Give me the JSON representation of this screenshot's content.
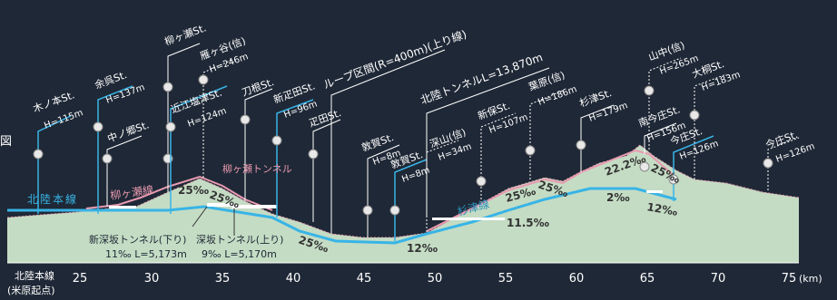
{
  "side_label": "図",
  "line_names": {
    "hokuriku_main": "北陸本線",
    "yanagase": "柳ヶ瀬線",
    "sugitsu": "杉津線"
  },
  "tunnels": {
    "yanagase": "柳ヶ瀬トンネル",
    "hokuriku": "北陸トンネルL=13,870m",
    "loop": "ループ区間(R=400m)(上り線)",
    "shin_fukasaka": [
      "新深坂トンネル(下り)",
      "11‰ L=5,173m"
    ],
    "fukasaka": [
      "深坂トンネル(上り)",
      "9‰ L=5,170m"
    ]
  },
  "axis": {
    "origin_label": [
      "北陸本線",
      "(米原起点)"
    ],
    "unit": "(km)",
    "ticks": [
      "25",
      "30",
      "35",
      "40",
      "45",
      "50",
      "55",
      "60",
      "65",
      "70",
      "75"
    ]
  },
  "stations": [
    {
      "name": "木ノ本St.",
      "elev": "H=115m"
    },
    {
      "name": "余呉St.",
      "elev": "H=137m"
    },
    {
      "name": "中ノ郷St.",
      "elev": ""
    },
    {
      "name": "柳ヶ瀬St.",
      "elev": ""
    },
    {
      "name": "雁ヶ谷(信)",
      "elev": "H=246m"
    },
    {
      "name": "近江塩津St.",
      "elev": "H=124m"
    },
    {
      "name": "刀根St.",
      "elev": ""
    },
    {
      "name": "新疋田St.",
      "elev": "H=96m"
    },
    {
      "name": "疋田St.",
      "elev": ""
    },
    {
      "name": "敦賀St.",
      "elev": "H=8m"
    },
    {
      "name": "敦賀St.",
      "elev": "H=8m"
    },
    {
      "name": "深山(信)",
      "elev": "H=34m"
    },
    {
      "name": "新保St.",
      "elev": "H=107m"
    },
    {
      "name": "葉原(信)",
      "elev": "H=186m"
    },
    {
      "name": "杉津St.",
      "elev": "H=179m"
    },
    {
      "name": "山中(信)",
      "elev": "H=265m"
    },
    {
      "name": "南今庄St.",
      "elev": "H=156m"
    },
    {
      "name": "今庄St.",
      "elev": "H=126m"
    },
    {
      "name": "大桐St.",
      "elev": "H=183m"
    },
    {
      "name": "今庄St.",
      "elev": "H=126m"
    }
  ],
  "gradients": [
    "25‰",
    "25‰",
    "25‰",
    "12‰",
    "11.5‰",
    "25‰",
    "25‰",
    "22.2‰",
    "25‰",
    "2‰",
    "12‰"
  ],
  "colors": {
    "background": "#1f2836",
    "ground": "#c4dcc4",
    "blue_line": "#38b4e6",
    "pink_line": "#e89ab0",
    "text": "#ffffff"
  }
}
